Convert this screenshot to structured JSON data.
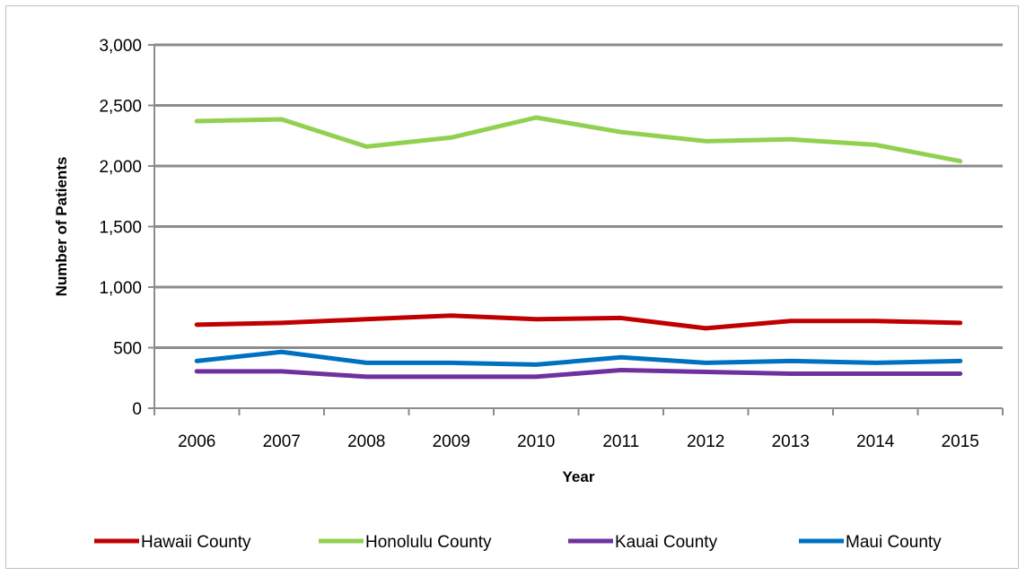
{
  "chart_data": {
    "type": "line",
    "title": "",
    "xlabel": "Year",
    "ylabel": "Number of Patients",
    "categories": [
      "2006",
      "2007",
      "2008",
      "2009",
      "2010",
      "2011",
      "2012",
      "2013",
      "2014",
      "2015"
    ],
    "ylim": [
      0,
      3000
    ],
    "yticks": [
      0,
      500,
      1000,
      1500,
      2000,
      2500,
      3000
    ],
    "ytick_labels": [
      "0",
      "500",
      "1,000",
      "1,500",
      "2,000",
      "2,500",
      "3,000"
    ],
    "grid": true,
    "legend_position": "bottom",
    "series": [
      {
        "name": "Hawaii County",
        "color": "#c00000",
        "values": [
          690,
          705,
          735,
          765,
          735,
          745,
          660,
          720,
          720,
          705
        ]
      },
      {
        "name": "Honolulu County",
        "color": "#92d050",
        "values": [
          2370,
          2385,
          2160,
          2235,
          2400,
          2280,
          2205,
          2220,
          2175,
          2040
        ]
      },
      {
        "name": "Kauai County",
        "color": "#7030a0",
        "values": [
          305,
          305,
          260,
          260,
          260,
          315,
          300,
          285,
          285,
          285
        ]
      },
      {
        "name": "Maui County",
        "color": "#0070c0",
        "values": [
          390,
          465,
          375,
          375,
          360,
          420,
          375,
          390,
          375,
          390
        ]
      }
    ]
  }
}
